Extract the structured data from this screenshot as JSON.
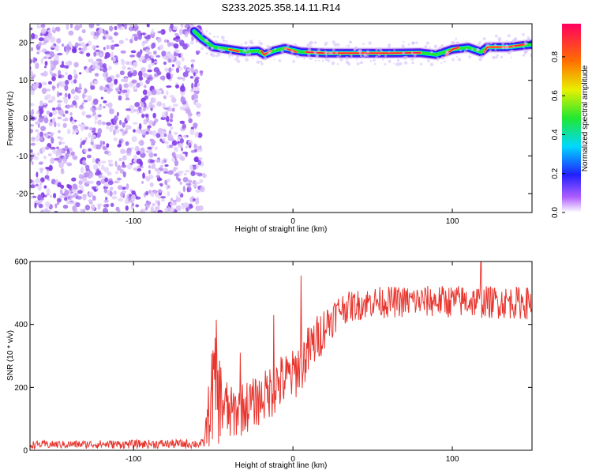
{
  "title": "S233.2025.358.14.11.R14",
  "chart_data": [
    {
      "type": "heatmap",
      "xlabel": "Height of straight line (km)",
      "ylabel": "Frequency (Hz)",
      "xlim": [
        -165,
        150
      ],
      "ylim": [
        -25,
        25
      ],
      "xticks": [
        -100,
        0,
        100
      ],
      "yticks": [
        -20,
        -10,
        0,
        10,
        20
      ],
      "colorbar": {
        "label": "Normalized spectral amplitude",
        "range": [
          0,
          0.97
        ],
        "ticks": [
          0.0,
          0.2,
          0.4,
          0.6,
          0.8
        ]
      },
      "noise_region_x": [
        -165,
        -57
      ],
      "ridge": [
        {
          "x": -62,
          "y": 23
        },
        {
          "x": -57,
          "y": 21
        },
        {
          "x": -50,
          "y": 18.8
        },
        {
          "x": -40,
          "y": 18.2
        },
        {
          "x": -30,
          "y": 17.6
        },
        {
          "x": -22,
          "y": 17.8
        },
        {
          "x": -18,
          "y": 16.8
        },
        {
          "x": -12,
          "y": 17.8
        },
        {
          "x": -5,
          "y": 18.5
        },
        {
          "x": 5,
          "y": 17.5
        },
        {
          "x": 20,
          "y": 17.2
        },
        {
          "x": 40,
          "y": 17.2
        },
        {
          "x": 60,
          "y": 17.2
        },
        {
          "x": 80,
          "y": 17.3
        },
        {
          "x": 90,
          "y": 16.8
        },
        {
          "x": 100,
          "y": 18.2
        },
        {
          "x": 110,
          "y": 18.7
        },
        {
          "x": 118,
          "y": 17.5
        },
        {
          "x": 122,
          "y": 18.8
        },
        {
          "x": 135,
          "y": 18.8
        },
        {
          "x": 150,
          "y": 19.5
        }
      ]
    },
    {
      "type": "line",
      "xlabel": "Height of straight line (km)",
      "ylabel": "SNR (10 * v/v)",
      "xlim": [
        -165,
        150
      ],
      "ylim": [
        0,
        600
      ],
      "xticks": [
        -100,
        0,
        100
      ],
      "yticks": [
        0,
        200,
        400,
        600
      ],
      "color": "#e8352e",
      "envelope": [
        {
          "x": -165,
          "lo": 5,
          "hi": 30
        },
        {
          "x": -56,
          "lo": 5,
          "hi": 35
        },
        {
          "x": -50,
          "lo": 10,
          "hi": 380
        },
        {
          "x": -40,
          "lo": 20,
          "hi": 200
        },
        {
          "x": -30,
          "lo": 50,
          "hi": 220
        },
        {
          "x": -20,
          "lo": 80,
          "hi": 240
        },
        {
          "x": -10,
          "lo": 110,
          "hi": 300
        },
        {
          "x": 0,
          "lo": 150,
          "hi": 320
        },
        {
          "x": 10,
          "lo": 220,
          "hi": 400
        },
        {
          "x": 20,
          "lo": 320,
          "hi": 460
        },
        {
          "x": 30,
          "lo": 400,
          "hi": 500
        },
        {
          "x": 50,
          "lo": 420,
          "hi": 520
        },
        {
          "x": 100,
          "lo": 420,
          "hi": 525
        },
        {
          "x": 150,
          "lo": 415,
          "hi": 520
        }
      ],
      "spikes": [
        {
          "x": -48,
          "y": 415
        },
        {
          "x": -33,
          "y": 310
        },
        {
          "x": -12,
          "y": 430
        },
        {
          "x": 5,
          "y": 555
        },
        {
          "x": 118,
          "y": 600
        }
      ]
    }
  ]
}
